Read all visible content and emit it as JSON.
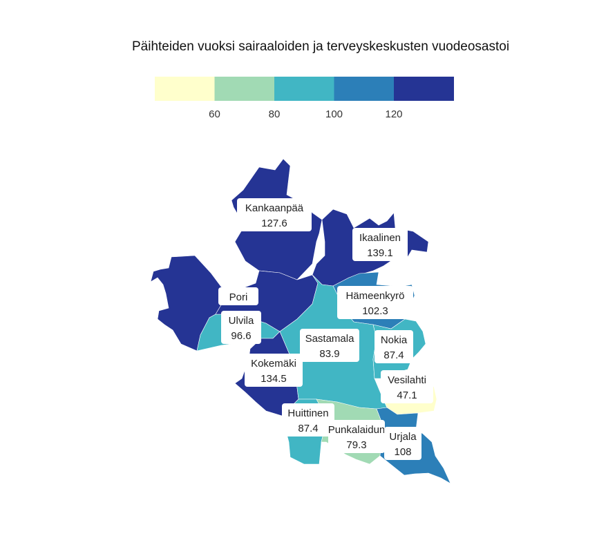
{
  "title": "Päihteiden vuoksi sairaaloiden ja terveyskeskusten vuodeosastoi",
  "legend": {
    "ticks": [
      "60",
      "80",
      "100",
      "120"
    ],
    "colors": [
      "#ffffcc",
      "#a1dab4",
      "#41b6c4",
      "#2c7fb8",
      "#253494"
    ]
  },
  "regions": [
    {
      "name": "Kankaanpää",
      "value": "127.6",
      "color": "#253494"
    },
    {
      "name": "Ikaalinen",
      "value": "139.1",
      "color": "#253494"
    },
    {
      "name": "Pori",
      "value": "",
      "color": "#253494"
    },
    {
      "name": "Ulvila",
      "value": "96.6",
      "color": "#41b6c4"
    },
    {
      "name": "Hämeenkyrö",
      "value": "102.3",
      "color": "#2c7fb8"
    },
    {
      "name": "Sastamala",
      "value": "83.9",
      "color": "#41b6c4"
    },
    {
      "name": "Nokia",
      "value": "87.4",
      "color": "#41b6c4"
    },
    {
      "name": "Kokemäki",
      "value": "134.5",
      "color": "#253494"
    },
    {
      "name": "Vesilahti",
      "value": "47.1",
      "color": "#ffffcc"
    },
    {
      "name": "Huittinen",
      "value": "87.4",
      "color": "#41b6c4"
    },
    {
      "name": "Punkalaidun",
      "value": "79.3",
      "color": "#a1dab4"
    },
    {
      "name": "Urjala",
      "value": "108",
      "color": "#2c7fb8"
    }
  ]
}
